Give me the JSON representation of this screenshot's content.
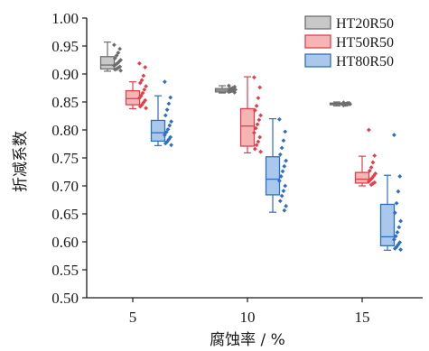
{
  "chart_data": {
    "type": "box",
    "xlabel": "腐蚀率 / %",
    "ylabel": "折减系数",
    "ylim": [
      0.5,
      1.0
    ],
    "yticks": [
      "0.50",
      "0.55",
      "0.60",
      "0.65",
      "0.70",
      "0.75",
      "0.80",
      "0.85",
      "0.90",
      "0.95",
      "1.00"
    ],
    "categories": [
      "5",
      "10",
      "15"
    ],
    "legend_position": "top-right",
    "grid": false,
    "series": [
      {
        "name": "HT20R50",
        "color": "#6e6e6e",
        "fill": "#c8c8c8",
        "boxes": [
          {
            "category": "5",
            "min": 0.905,
            "q1": 0.909,
            "median": 0.916,
            "q3": 0.931,
            "max": 0.957,
            "points": [
              0.952,
              0.945,
              0.938,
              0.933,
              0.928,
              0.925,
              0.922,
              0.919,
              0.917,
              0.915,
              0.913,
              0.911,
              0.909,
              0.908,
              0.906
            ]
          },
          {
            "category": "10",
            "min": 0.866,
            "q1": 0.868,
            "median": 0.871,
            "q3": 0.874,
            "max": 0.879,
            "points": [
              0.879,
              0.877,
              0.875,
              0.874,
              0.873,
              0.872,
              0.871,
              0.87,
              0.869,
              0.868,
              0.867
            ]
          },
          {
            "category": "15",
            "min": 0.843,
            "q1": 0.845,
            "median": 0.847,
            "q3": 0.848,
            "max": 0.85,
            "points": [
              0.849,
              0.848,
              0.848,
              0.847,
              0.847,
              0.846,
              0.846,
              0.845,
              0.845,
              0.844
            ]
          }
        ]
      },
      {
        "name": "HT50R50",
        "color": "#e0404a",
        "fill": "#f6b5b5",
        "boxes": [
          {
            "category": "5",
            "min": 0.838,
            "q1": 0.845,
            "median": 0.856,
            "q3": 0.87,
            "max": 0.886,
            "points": [
              0.919,
              0.912,
              0.897,
              0.889,
              0.884,
              0.878,
              0.872,
              0.866,
              0.861,
              0.857,
              0.853,
              0.849,
              0.845,
              0.842,
              0.839
            ]
          },
          {
            "category": "10",
            "min": 0.759,
            "q1": 0.771,
            "median": 0.807,
            "q3": 0.838,
            "max": 0.895,
            "points": [
              0.894,
              0.876,
              0.857,
              0.843,
              0.835,
              0.826,
              0.818,
              0.81,
              0.803,
              0.795,
              0.787,
              0.779,
              0.773,
              0.766,
              0.761
            ]
          },
          {
            "category": "15",
            "min": 0.7,
            "q1": 0.705,
            "median": 0.712,
            "q3": 0.724,
            "max": 0.753,
            "points": [
              0.8,
              0.754,
              0.742,
              0.733,
              0.727,
              0.722,
              0.718,
              0.714,
              0.711,
              0.708,
              0.706,
              0.704,
              0.702
            ]
          }
        ]
      },
      {
        "name": "HT80R50",
        "color": "#2f6fc2",
        "fill": "#a9c8ec",
        "boxes": [
          {
            "category": "5",
            "min": 0.772,
            "q1": 0.78,
            "median": 0.795,
            "q3": 0.817,
            "max": 0.861,
            "points": [
              0.886,
              0.858,
              0.847,
              0.836,
              0.826,
              0.815,
              0.808,
              0.801,
              0.796,
              0.791,
              0.787,
              0.783,
              0.779,
              0.776,
              0.773
            ]
          },
          {
            "category": "10",
            "min": 0.653,
            "q1": 0.684,
            "median": 0.712,
            "q3": 0.752,
            "max": 0.82,
            "points": [
              0.819,
              0.797,
              0.781,
              0.768,
              0.756,
              0.745,
              0.735,
              0.726,
              0.717,
              0.709,
              0.7,
              0.691,
              0.682,
              0.673,
              0.664,
              0.656
            ]
          },
          {
            "category": "15",
            "min": 0.585,
            "q1": 0.593,
            "median": 0.609,
            "q3": 0.667,
            "max": 0.719,
            "points": [
              0.791,
              0.717,
              0.69,
              0.669,
              0.652,
              0.637,
              0.626,
              0.617,
              0.61,
              0.604,
              0.599,
              0.595,
              0.591,
              0.588,
              0.586
            ]
          }
        ]
      }
    ]
  }
}
